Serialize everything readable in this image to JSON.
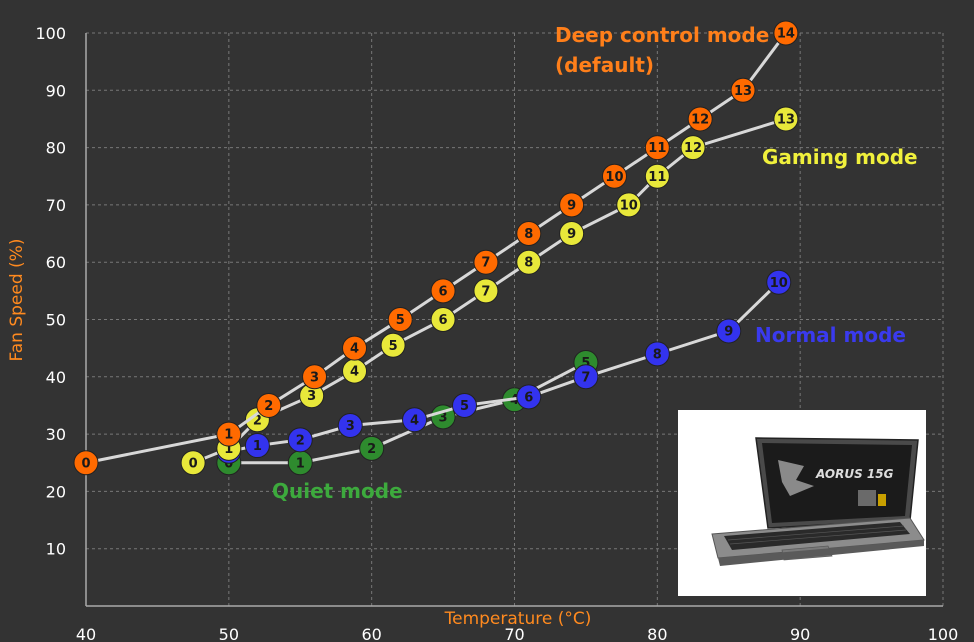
{
  "chart_data": {
    "type": "line",
    "title": "",
    "xlabel": "Temperature (°C)",
    "ylabel": "Fan Speed (%)",
    "xlim": [
      40,
      100
    ],
    "ylim": [
      0,
      100
    ],
    "x_ticks": [
      "40",
      "50",
      "60",
      "70",
      "80",
      "90",
      "100"
    ],
    "y_ticks": [
      "10",
      "20",
      "30",
      "40",
      "50",
      "60",
      "70",
      "80",
      "90",
      "100"
    ],
    "grid": true,
    "series": [
      {
        "name": "Quiet mode",
        "color": "#2e8b2e",
        "text_color": "#3daa3d",
        "points": [
          {
            "label": "0",
            "x": 50,
            "y": 25
          },
          {
            "label": "1",
            "x": 55,
            "y": 25
          },
          {
            "label": "2",
            "x": 60,
            "y": 27.5
          },
          {
            "label": "3",
            "x": 65,
            "y": 33
          },
          {
            "label": "4",
            "x": 70,
            "y": 36
          },
          {
            "label": "5",
            "x": 75,
            "y": 42.5
          }
        ]
      },
      {
        "name": "Normal mode",
        "color": "#3333ee",
        "text_color": "#3a3aee",
        "points": [
          {
            "label": "0",
            "x": 50,
            "y": 27
          },
          {
            "label": "1",
            "x": 52,
            "y": 28
          },
          {
            "label": "2",
            "x": 55,
            "y": 29
          },
          {
            "label": "3",
            "x": 58.5,
            "y": 31.5
          },
          {
            "label": "4",
            "x": 63,
            "y": 32.5
          },
          {
            "label": "5",
            "x": 66.5,
            "y": 35
          },
          {
            "label": "6",
            "x": 71,
            "y": 36.5
          },
          {
            "label": "7",
            "x": 75,
            "y": 40
          },
          {
            "label": "8",
            "x": 80,
            "y": 44
          },
          {
            "label": "9",
            "x": 85,
            "y": 48
          },
          {
            "label": "10",
            "x": 88.5,
            "y": 56.5
          }
        ]
      },
      {
        "name": "Gaming mode",
        "color": "#e8e83a",
        "text_color": "#f0f03c",
        "points": [
          {
            "label": "0",
            "x": 47.5,
            "y": 25
          },
          {
            "label": "1",
            "x": 50,
            "y": 27.5
          },
          {
            "label": "2",
            "x": 52,
            "y": 32.5
          },
          {
            "label": "3",
            "x": 55.8,
            "y": 36.7
          },
          {
            "label": "4",
            "x": 58.8,
            "y": 41
          },
          {
            "label": "5",
            "x": 61.5,
            "y": 45.5
          },
          {
            "label": "6",
            "x": 65,
            "y": 50
          },
          {
            "label": "7",
            "x": 68,
            "y": 55
          },
          {
            "label": "8",
            "x": 71,
            "y": 60
          },
          {
            "label": "9",
            "x": 74,
            "y": 65
          },
          {
            "label": "10",
            "x": 78,
            "y": 70
          },
          {
            "label": "11",
            "x": 80,
            "y": 75
          },
          {
            "label": "12",
            "x": 82.5,
            "y": 80
          },
          {
            "label": "13",
            "x": 89,
            "y": 85
          }
        ]
      },
      {
        "name": "Deep control mode (default)",
        "name_lines": [
          "Deep control mode",
          "(default)"
        ],
        "color": "#ff6a00",
        "text_color": "#ff7f1a",
        "points": [
          {
            "label": "0",
            "x": 40,
            "y": 25
          },
          {
            "label": "1",
            "x": 50,
            "y": 30
          },
          {
            "label": "2",
            "x": 52.8,
            "y": 35
          },
          {
            "label": "3",
            "x": 56,
            "y": 40
          },
          {
            "label": "4",
            "x": 58.8,
            "y": 45
          },
          {
            "label": "5",
            "x": 62,
            "y": 50
          },
          {
            "label": "6",
            "x": 65,
            "y": 55
          },
          {
            "label": "7",
            "x": 68,
            "y": 60
          },
          {
            "label": "8",
            "x": 71,
            "y": 65
          },
          {
            "label": "9",
            "x": 74,
            "y": 70
          },
          {
            "label": "10",
            "x": 77,
            "y": 75
          },
          {
            "label": "11",
            "x": 80,
            "y": 80
          },
          {
            "label": "12",
            "x": 83,
            "y": 85
          },
          {
            "label": "13",
            "x": 86,
            "y": 90
          },
          {
            "label": "14",
            "x": 89,
            "y": 100
          }
        ]
      }
    ]
  },
  "inset": {
    "logo_text": "AORUS 15G"
  }
}
